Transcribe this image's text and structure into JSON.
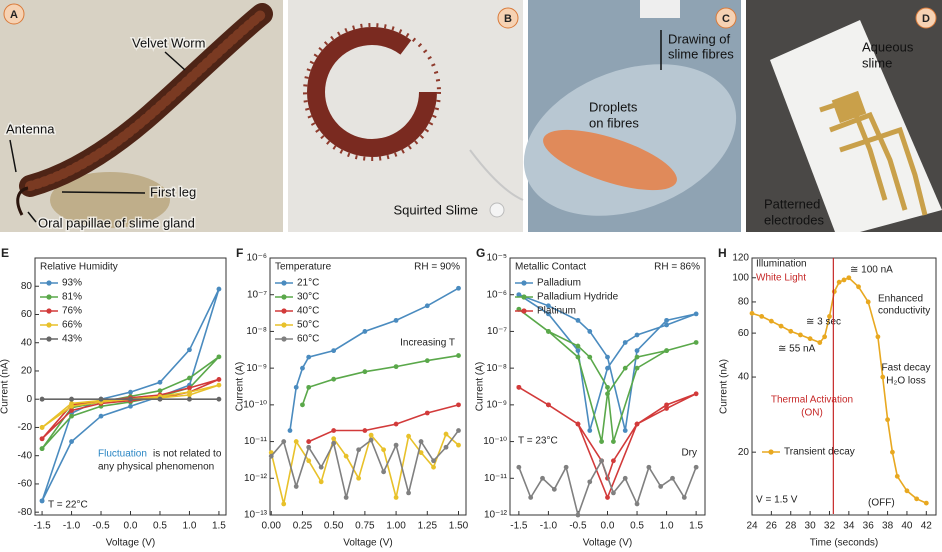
{
  "panels": [
    {
      "panel": "A",
      "labels": [
        "Velvet Worm",
        "Antenna",
        "First leg",
        "Oral papillae of slime gland"
      ]
    },
    {
      "panel": "B",
      "labels": [
        "Squirted Slime"
      ]
    },
    {
      "panel": "C",
      "labels": [
        "Drawing of",
        "slime fibres",
        "Droplets",
        "on fibres"
      ]
    },
    {
      "panel": "D",
      "labels": [
        "Aqueous",
        "slime",
        "Patterned",
        "electrodes"
      ]
    }
  ],
  "chart_data": [
    {
      "type": "line",
      "panel": "E",
      "xlabel": "Voltage (V)",
      "ylabel": "Current (nA)",
      "annotations": [
        "Relative Humidity",
        "Fluctuation",
        "is not related to",
        "any physical phenomenon",
        "T = 22°C"
      ],
      "xlim": [
        -1.62,
        1.62
      ],
      "ylim": [
        -82,
        100
      ],
      "xticks": [
        -1.5,
        {
          "value": -1,
          "label": "-1.0"
        },
        -0.5,
        {
          "value": 0,
          "label": "0.0"
        },
        0.5,
        {
          "value": 1,
          "label": "1.0"
        },
        1.5
      ],
      "yticks": [
        -80,
        -60,
        -40,
        -20,
        0,
        20,
        40,
        60,
        80
      ],
      "x": [
        -1.5,
        -1,
        -0.5,
        0,
        0.5,
        1,
        1.5,
        1,
        0.5,
        0,
        -0.5,
        -1,
        -1.5
      ],
      "series": [
        {
          "name": "93%",
          "color": "#4a8bbf",
          "values": [
            -72,
            -30,
            -12,
            -5,
            2,
            10,
            78,
            35,
            12,
            5,
            0,
            -10,
            -72
          ]
        },
        {
          "name": "81%",
          "color": "#5aa84a",
          "values": [
            -35,
            -12,
            -5,
            -2,
            2,
            8,
            30,
            15,
            6,
            2,
            -2,
            -6,
            -35
          ]
        },
        {
          "name": "76%",
          "color": "#d23a3a",
          "values": [
            -28,
            -8,
            -3,
            -1,
            1,
            5,
            14,
            8,
            3,
            1,
            -1,
            -4,
            -28
          ]
        },
        {
          "name": "66%",
          "color": "#e8c12a",
          "values": [
            -20,
            -5,
            -2,
            0,
            1,
            3,
            10,
            5,
            2,
            0,
            -1,
            -3,
            -20
          ]
        },
        {
          "name": "43%",
          "color": "#666666",
          "values": [
            0,
            0,
            0,
            0,
            0,
            0,
            0,
            0,
            0,
            0,
            0,
            0,
            0
          ]
        }
      ]
    },
    {
      "type": "line",
      "panel": "F",
      "xlabel": "Voltage (V)",
      "ylabel": "Current (A)",
      "yscale": "log",
      "annotations": [
        "Temperature",
        "RH = 90%",
        "Increasing T"
      ],
      "xlim": [
        -0.01,
        1.56
      ],
      "ylim": [
        1e-13,
        1e-06
      ],
      "xticks": [
        {
          "value": 0,
          "label": "0.00"
        },
        0.25,
        {
          "value": 0.5,
          "label": "0.50"
        },
        0.75,
        {
          "value": 1,
          "label": "1.00"
        },
        1.25,
        {
          "value": 1.5,
          "label": "1.50"
        }
      ],
      "yticks": [
        {
          "value": 1e-13,
          "label": "10⁻¹³"
        },
        {
          "value": 1e-12,
          "label": "10⁻¹²"
        },
        {
          "value": 1e-11,
          "label": "10⁻¹¹"
        },
        {
          "value": 1e-10,
          "label": "10⁻¹⁰"
        },
        {
          "value": 1e-09,
          "label": "10⁻⁹"
        },
        {
          "value": 1e-08,
          "label": "10⁻⁸"
        },
        {
          "value": 1e-07,
          "label": "10⁻⁷"
        },
        {
          "value": 1e-06,
          "label": "10⁻⁶"
        }
      ],
      "series": [
        {
          "name": "21°C",
          "color": "#4a8bbf",
          "x": [
            0.15,
            0.2,
            0.25,
            0.3,
            0.5,
            0.75,
            1,
            1.25,
            1.5
          ],
          "values": [
            2e-11,
            3e-10,
            1e-09,
            2e-09,
            3e-09,
            1e-08,
            2e-08,
            5e-08,
            1.5e-07
          ]
        },
        {
          "name": "30°C",
          "color": "#5aa84a",
          "x": [
            0.15,
            0.2,
            0.25,
            0.3,
            0.5,
            0.75,
            1,
            1.25,
            1.5
          ],
          "values": [
            null,
            null,
            1e-10,
            3e-10,
            5e-10,
            8e-10,
            1.1e-09,
            1.6e-09,
            2.2e-09
          ]
        },
        {
          "name": "40°C",
          "color": "#d23a3a",
          "x": [
            0.15,
            0.2,
            0.25,
            0.3,
            0.5,
            0.75,
            1,
            1.25,
            1.5
          ],
          "values": [
            null,
            null,
            null,
            1e-11,
            2e-11,
            2e-11,
            3e-11,
            6e-11,
            1e-10
          ]
        },
        {
          "name": "50°C",
          "color": "#e8c12a",
          "x": [
            0,
            0.1,
            0.2,
            0.3,
            0.4,
            0.5,
            0.6,
            0.7,
            0.8,
            0.9,
            1,
            1.1,
            1.2,
            1.3,
            1.4,
            1.5
          ],
          "values": [
            5e-12,
            2e-13,
            1e-11,
            3e-12,
            8e-13,
            1.2e-11,
            4e-12,
            1e-12,
            1.5e-11,
            6e-12,
            3e-13,
            1.4e-11,
            5e-12,
            2e-12,
            1.6e-11,
            8e-12
          ]
        },
        {
          "name": "60°C",
          "color": "#808080",
          "x": [
            0,
            0.1,
            0.2,
            0.3,
            0.4,
            0.5,
            0.6,
            0.7,
            0.8,
            0.9,
            1,
            1.1,
            1.2,
            1.3,
            1.4,
            1.5
          ],
          "values": [
            4e-12,
            1e-11,
            6e-13,
            7e-12,
            2e-12,
            9e-12,
            3e-13,
            6e-12,
            1.1e-11,
            1.5e-12,
            8e-12,
            4e-13,
            1e-11,
            3e-12,
            7e-12,
            2e-11
          ]
        }
      ]
    },
    {
      "type": "line",
      "panel": "G",
      "xlabel": "Voltage (V)",
      "ylabel": "Current (A)",
      "yscale": "log",
      "annotations": [
        "Metallic Contact",
        "RH = 86%",
        "T = 23°C",
        "Dry"
      ],
      "xlim": [
        -1.65,
        1.65
      ],
      "ylim": [
        1e-12,
        1e-05
      ],
      "xticks": [
        -1.5,
        {
          "value": -1,
          "label": "-1.0"
        },
        -0.5,
        {
          "value": 0,
          "label": "0.0"
        },
        0.5,
        {
          "value": 1,
          "label": "1.0"
        },
        1.5
      ],
      "yticks": [
        {
          "value": 1e-12,
          "label": "10⁻¹²"
        },
        {
          "value": 1e-11,
          "label": "10⁻¹¹"
        },
        {
          "value": 1e-10,
          "label": "10⁻¹⁰"
        },
        {
          "value": 1e-09,
          "label": "10⁻⁹"
        },
        {
          "value": 1e-08,
          "label": "10⁻⁸"
        },
        {
          "value": 1e-07,
          "label": "10⁻⁷"
        },
        {
          "value": 1e-06,
          "label": "10⁻⁶"
        },
        {
          "value": 1e-05,
          "label": "10⁻⁵"
        }
      ],
      "series": [
        {
          "name": "Palladium",
          "color": "#4a8bbf",
          "x": [
            -1.5,
            -1,
            -0.5,
            -0.3,
            0,
            0.3,
            0.5,
            1,
            1.5,
            1,
            0.5,
            0.3,
            0,
            -0.3,
            -0.5,
            -1,
            -1.5
          ],
          "values": [
            1e-06,
            3e-07,
            3e-08,
            2e-10,
            1e-08,
            5e-08,
            8e-08,
            1.5e-07,
            3e-07,
            2e-07,
            3e-08,
            2e-10,
            2e-08,
            1e-07,
            2e-07,
            5e-07,
            1e-06
          ]
        },
        {
          "name": "Palladium Hydride",
          "color": "#5aa84a",
          "x": [
            -1.5,
            -1,
            -0.5,
            -0.1,
            0,
            0.3,
            0.5,
            1,
            1.5,
            1,
            0.5,
            0.1,
            0,
            -0.3,
            -0.5,
            -1,
            -1.5
          ],
          "values": [
            4e-07,
            1e-07,
            2e-08,
            1e-10,
            2e-09,
            1e-08,
            2e-08,
            3e-08,
            5e-08,
            3e-08,
            1e-08,
            1e-10,
            3e-09,
            2e-08,
            4e-08,
            1e-07,
            4e-07
          ]
        },
        {
          "name": "Platinum",
          "color": "#d23a3a",
          "x": [
            -1.5,
            -1,
            -0.5,
            -0.1,
            0,
            0.1,
            0.5,
            1,
            1.5,
            1,
            0.5,
            0,
            -0.5,
            -1,
            -1.5
          ],
          "values": [
            3e-09,
            1e-09,
            3e-10,
            3e-11,
            1e-11,
            3e-11,
            3e-10,
            8e-10,
            2e-09,
            1e-09,
            3e-10,
            3e-12,
            3e-10,
            1e-09,
            3e-09
          ]
        },
        {
          "color": "#808080",
          "x": [
            -1.5,
            -1.3,
            -1.1,
            -0.9,
            -0.7,
            -0.5,
            -0.3,
            -0.1,
            0.1,
            0.3,
            0.5,
            0.7,
            0.9,
            1.1,
            1.3,
            1.5
          ],
          "values": [
            2e-11,
            3e-12,
            1e-11,
            5e-12,
            2e-11,
            1e-12,
            8e-12,
            3e-11,
            4e-12,
            1e-11,
            2e-12,
            2e-11,
            6e-12,
            1e-11,
            3e-12,
            2e-11
          ]
        }
      ]
    },
    {
      "type": "line",
      "panel": "H",
      "xlabel": "Time (seconds)",
      "ylabel": "Current (nA)",
      "yscale": "log",
      "annotations": [
        "Illumination",
        "White Light",
        "≅ 100 nA",
        "≅ 3 sec",
        "≅ 55 nA",
        "Enhanced",
        "conductivity",
        "Fast decay",
        "H₂O loss",
        "Thermal Activation",
        "(ON)",
        "V = 1.5 V",
        "(OFF)"
      ],
      "xlim": [
        24,
        43
      ],
      "ylim": [
        11.2,
        120
      ],
      "xticks": [
        24,
        26,
        28,
        30,
        32,
        34,
        36,
        38,
        40,
        42
      ],
      "yticks": [
        20,
        40,
        60,
        80,
        100,
        120
      ],
      "x": [
        24,
        25,
        26,
        27,
        28,
        29,
        30,
        31,
        31.5,
        32,
        32.5,
        33,
        33.5,
        34,
        35,
        36,
        37,
        37.5,
        38,
        38.5,
        39,
        40,
        41,
        42
      ],
      "series": [
        {
          "name": "Transient decay",
          "color": "#e8a820",
          "values": [
            72,
            70,
            67,
            64,
            61,
            59,
            57,
            55,
            58,
            70,
            88,
            96,
            98,
            100,
            92,
            80,
            58,
            40,
            27,
            20,
            16,
            14,
            13,
            12.5
          ]
        }
      ]
    }
  ]
}
